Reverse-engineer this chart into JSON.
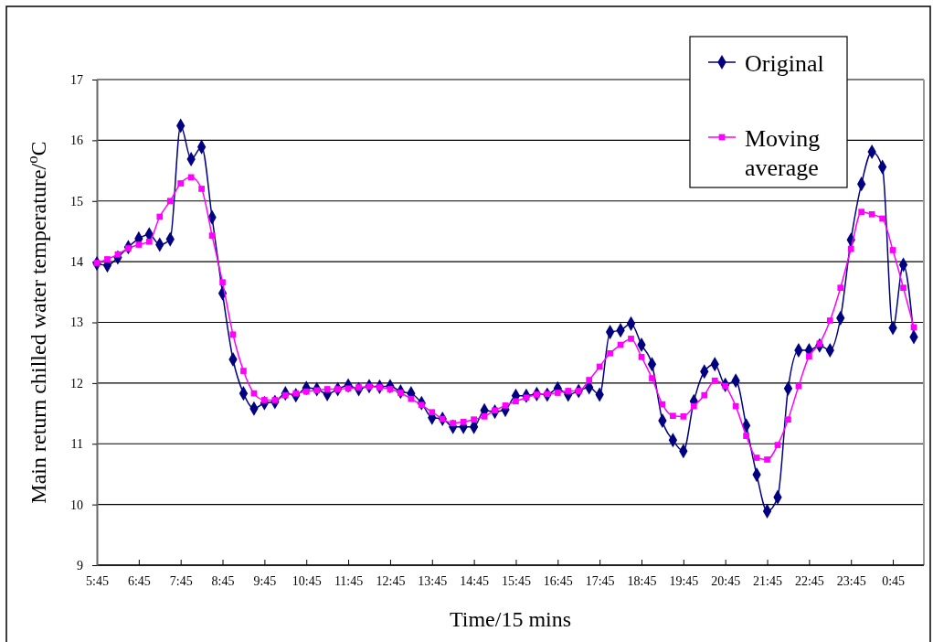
{
  "chart_data": {
    "type": "line",
    "xlabel": "Time/15 mins",
    "ylabel": "Main return chilled water temperature/$^{o}$C",
    "categories": [
      "5:45",
      null,
      null,
      null,
      "6:45",
      null,
      null,
      null,
      "7:45",
      null,
      null,
      null,
      "8:45",
      null,
      null,
      null,
      "9:45",
      null,
      null,
      null,
      "10:45",
      null,
      null,
      null,
      "11:45",
      null,
      null,
      null,
      "12:45",
      null,
      null,
      null,
      "13:45",
      null,
      null,
      null,
      "14:45",
      null,
      null,
      null,
      "15:45",
      null,
      null,
      null,
      "16:45",
      null,
      null,
      null,
      "17:45",
      null,
      null,
      null,
      "18:45",
      null,
      null,
      null,
      "19:45",
      null,
      null,
      null,
      "20:45",
      null,
      null,
      null,
      "21:45",
      null,
      null,
      null,
      "22:45",
      null,
      null,
      null,
      "23:45",
      null,
      null,
      null,
      "0:45",
      null,
      null
    ],
    "ylim": [
      9,
      17
    ],
    "yticks": [
      9,
      10,
      11,
      12,
      13,
      14,
      15,
      16,
      17
    ],
    "grid": "y",
    "legend": "top right",
    "series": [
      {
        "name": "Original",
        "color": "#000080",
        "marker": "diamond",
        "values": [
          13.97,
          13.94,
          14.07,
          14.24,
          14.38,
          14.45,
          14.28,
          14.37,
          16.24,
          15.69,
          15.89,
          14.73,
          13.48,
          12.39,
          11.83,
          11.58,
          11.67,
          11.69,
          11.83,
          11.8,
          11.92,
          11.9,
          11.82,
          11.9,
          11.96,
          11.9,
          11.95,
          11.94,
          11.95,
          11.86,
          11.83,
          11.67,
          11.43,
          11.41,
          11.28,
          11.28,
          11.28,
          11.55,
          11.53,
          11.56,
          11.79,
          11.79,
          11.82,
          11.81,
          11.91,
          11.81,
          11.87,
          11.93,
          11.81,
          12.84,
          12.87,
          12.98,
          12.63,
          12.31,
          11.38,
          11.06,
          10.88,
          11.7,
          12.19,
          12.31,
          11.97,
          12.04,
          11.3,
          10.49,
          9.89,
          10.12,
          11.91,
          12.54,
          12.54,
          12.62,
          12.54,
          13.07,
          14.36,
          15.28,
          15.81,
          15.56,
          12.91,
          13.95,
          12.76
        ]
      },
      {
        "name": "Moving average",
        "color": "#ff00ff",
        "marker": "square",
        "values": [
          13.98,
          14.04,
          14.12,
          14.22,
          14.28,
          14.33,
          14.74,
          15.0,
          15.29,
          15.39,
          15.2,
          14.43,
          13.66,
          12.8,
          12.2,
          11.83,
          11.72,
          11.72,
          11.8,
          11.83,
          11.86,
          11.88,
          11.9,
          11.9,
          11.91,
          11.93,
          11.94,
          11.93,
          11.9,
          11.84,
          11.74,
          11.64,
          11.52,
          11.41,
          11.34,
          11.36,
          11.4,
          11.45,
          11.55,
          11.63,
          11.7,
          11.76,
          11.81,
          11.82,
          11.84,
          11.87,
          11.87,
          12.05,
          12.27,
          12.49,
          12.63,
          12.73,
          12.43,
          12.08,
          11.65,
          11.46,
          11.45,
          11.62,
          11.8,
          12.04,
          11.95,
          11.62,
          11.13,
          10.77,
          10.74,
          10.98,
          11.4,
          11.95,
          12.44,
          12.65,
          13.03,
          13.57,
          14.21,
          14.82,
          14.78,
          14.71,
          14.19,
          13.57,
          12.92
        ]
      }
    ]
  }
}
